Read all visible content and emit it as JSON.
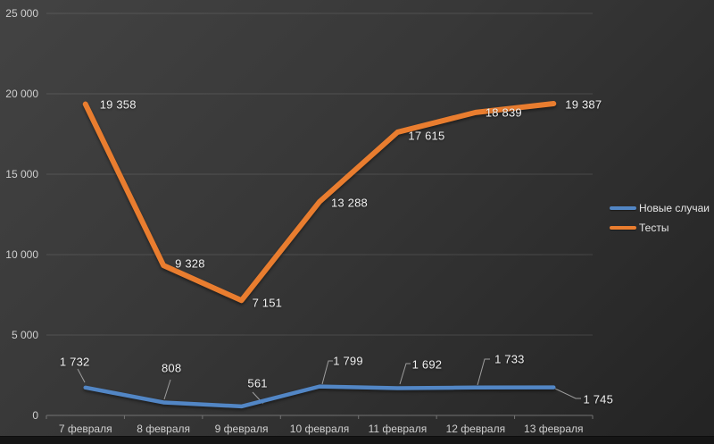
{
  "chart_data": {
    "type": "line",
    "title": "",
    "xlabel": "",
    "ylabel": "",
    "categories": [
      "7 февраля",
      "8 февраля",
      "9 февраля",
      "10 февраля",
      "11 февраля",
      "12 февраля",
      "13 февраля"
    ],
    "series": [
      {
        "name": "Новые случаи",
        "color": "#5286c5",
        "values": [
          1732,
          808,
          561,
          1799,
          1692,
          1733,
          1745
        ],
        "labels": [
          "1 732",
          "808",
          "561",
          "1 799",
          "1 692",
          "1 733",
          "1 745"
        ]
      },
      {
        "name": "Тесты",
        "color": "#e97d2f",
        "values": [
          19358,
          9328,
          7151,
          13288,
          17615,
          18839,
          19387
        ],
        "labels": [
          "19 358",
          "9 328",
          "7 151",
          "13 288",
          "17 615",
          "18 839",
          "19 387"
        ]
      }
    ],
    "ylim": [
      0,
      25000
    ],
    "y_tick_values": [
      0,
      5000,
      10000,
      15000,
      20000,
      25000
    ],
    "y_tick_labels": [
      "0",
      "5 000",
      "10 000",
      "15 000",
      "20 000",
      "25 000"
    ],
    "grid": true,
    "legend_position": "right"
  },
  "legend": {
    "item1": "Новые случаи",
    "item2": "Тесты"
  }
}
